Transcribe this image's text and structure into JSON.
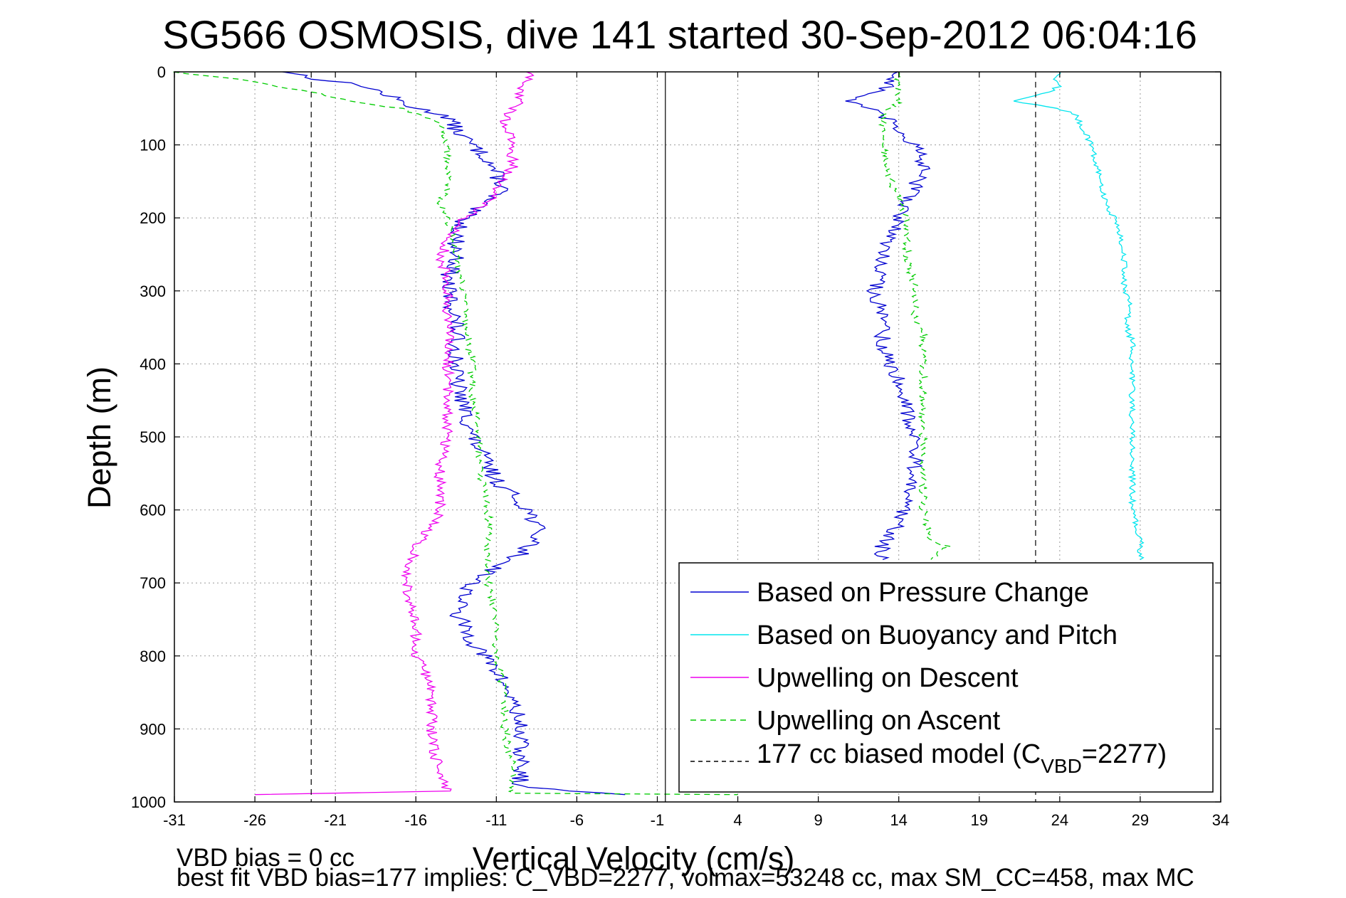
{
  "chart_data": {
    "type": "line",
    "title": "SG566 OSMOSIS, dive 141 started 30-Sep-2012 06:04:16",
    "xlabel": "Vertical Velocity (cm/s)",
    "ylabel": "Depth (m)",
    "xlim": [
      -31,
      34
    ],
    "ylim": [
      0,
      1000
    ],
    "y_reversed": true,
    "grid": true,
    "x_ticks": [
      "-31",
      "-26",
      "-21",
      "-16",
      "-11",
      "-6",
      "-1",
      "4",
      "9",
      "14",
      "19",
      "24",
      "29",
      "34"
    ],
    "y_ticks": [
      "0",
      "100",
      "200",
      "300",
      "400",
      "500",
      "600",
      "700",
      "800",
      "900",
      "1000"
    ],
    "legend_position": "lower-right",
    "legend_entries": [
      {
        "label": "Based on Pressure Change",
        "color": "#0000d0",
        "style": "solid"
      },
      {
        "label": "Based on Buoyancy and Pitch",
        "color": "#00e5ee",
        "style": "solid"
      },
      {
        "label": "Upwelling on Descent",
        "color": "#ee00ee",
        "style": "solid"
      },
      {
        "label": "Upwelling on Ascent",
        "color": "#00cc00",
        "style": "dashed"
      },
      {
        "label": "177 cc biased model (C",
        "sub": "VBD",
        "suffix": "=2277)",
        "color": "#000000",
        "style": "dashed"
      }
    ],
    "zero_line_x": -0.5,
    "model_lines_x": [
      -22.5,
      22.5
    ],
    "series": [
      {
        "name": "Based on Pressure Change",
        "color": "#0000d0",
        "dash": "",
        "depth": [
          0,
          10,
          20,
          30,
          40,
          50,
          60,
          80,
          100,
          120,
          140,
          160,
          180,
          200,
          230,
          260,
          280,
          300,
          340,
          380,
          420,
          460,
          500,
          540,
          560,
          580,
          600,
          620,
          640,
          660,
          680,
          700,
          740,
          780,
          820,
          860,
          900,
          940,
          980,
          990
        ],
        "values": [
          -24,
          -22,
          -19,
          -18,
          -17,
          -16,
          -14,
          -13.5,
          -12.5,
          -11.5,
          -11,
          -10.5,
          -12,
          -13,
          -13.5,
          -13.5,
          -14,
          -14,
          -13.5,
          -13.5,
          -13.5,
          -13,
          -12.5,
          -11.5,
          -11,
          -10,
          -9,
          -8.5,
          -8.5,
          -9.5,
          -11,
          -12.5,
          -13.5,
          -12.5,
          -11,
          -10,
          -9.5,
          -9.5,
          -9.5,
          -3
        ]
      },
      {
        "name": "Upwelling on Descent",
        "color": "#ee00ee",
        "dash": "",
        "depth": [
          0,
          10,
          20,
          30,
          40,
          50,
          70,
          100,
          130,
          160,
          180,
          200,
          230,
          260,
          280,
          300,
          340,
          380,
          420,
          460,
          500,
          540,
          580,
          600,
          620,
          650,
          680,
          720,
          760,
          800,
          840,
          880,
          920,
          960,
          985,
          990
        ],
        "values": [
          -9,
          -9,
          -9.5,
          -9.5,
          -9.5,
          -10,
          -10.5,
          -10,
          -10,
          -11,
          -11.5,
          -13,
          -14,
          -14.5,
          -14,
          -14,
          -14,
          -14,
          -14,
          -14,
          -14,
          -14.5,
          -14.5,
          -14.5,
          -15,
          -16,
          -16.5,
          -16.5,
          -16,
          -16,
          -15,
          -15,
          -15,
          -14.5,
          -14,
          -26
        ]
      },
      {
        "name": "Upwelling on Ascent",
        "color": "#00cc00",
        "dash": "8,6",
        "depth": [
          0,
          10,
          20,
          30,
          40,
          50,
          70,
          100,
          130,
          160,
          180,
          200,
          250,
          300,
          340,
          400,
          450,
          500,
          550,
          600,
          650,
          700,
          750,
          800,
          850,
          900,
          950,
          988,
          990
        ],
        "values": [
          -31,
          -27,
          -24.5,
          -22,
          -20,
          -17,
          -14.5,
          -14,
          -14,
          -14,
          -14.5,
          -14,
          -13.5,
          -13,
          -13,
          -12.5,
          -12.5,
          -12,
          -12,
          -11.5,
          -11.5,
          -11.5,
          -11,
          -11,
          -10.5,
          -10.5,
          -10,
          -10,
          4
        ]
      },
      {
        "name": "Based on Pressure Change",
        "color": "#0000d0",
        "dash": "",
        "depth": [
          0,
          10,
          20,
          30,
          40,
          60,
          80,
          100,
          130,
          160,
          200,
          250,
          275,
          300,
          340,
          380,
          420,
          460,
          500,
          540,
          580,
          620,
          650,
          668
        ],
        "values": [
          14,
          13.5,
          13.5,
          12,
          11,
          13,
          14,
          15,
          15.5,
          15,
          14,
          13,
          13,
          12.5,
          13,
          13,
          14,
          14.5,
          15,
          15,
          14.5,
          14,
          13,
          13
        ]
      },
      {
        "name": "Upwelling on Ascent",
        "color": "#00cc00",
        "dash": "8,6",
        "depth": [
          0,
          10,
          20,
          40,
          60,
          80,
          100,
          150,
          200,
          250,
          300,
          340,
          350,
          400,
          450,
          500,
          550,
          600,
          640,
          650,
          668
        ],
        "values": [
          14,
          14,
          14,
          14,
          13,
          13,
          13,
          13.5,
          14.5,
          14.5,
          15,
          15,
          15.5,
          15.5,
          15.5,
          15.5,
          15.5,
          15.5,
          16,
          17,
          16
        ]
      },
      {
        "name": "Based on Buoyancy and Pitch",
        "color": "#00e5ee",
        "dash": "",
        "depth": [
          0,
          10,
          20,
          30,
          40,
          50,
          60,
          80,
          100,
          150,
          190,
          200,
          250,
          300,
          330,
          340,
          370,
          380,
          450,
          500,
          550,
          600,
          640,
          650,
          668
        ],
        "values": [
          24,
          23.5,
          24,
          23,
          21,
          24,
          25,
          25.5,
          26,
          26.5,
          27,
          27.5,
          28,
          28,
          28.5,
          28,
          28.5,
          28.5,
          28.5,
          28.5,
          28.5,
          28.5,
          29,
          29,
          29
        ]
      }
    ]
  },
  "notes": {
    "line1": "VBD bias = 0 cc",
    "line2": "best fit VBD bias=177 implies: C_VBD=2277, volmax=53248 cc, max SM_CC=458, max MC"
  }
}
